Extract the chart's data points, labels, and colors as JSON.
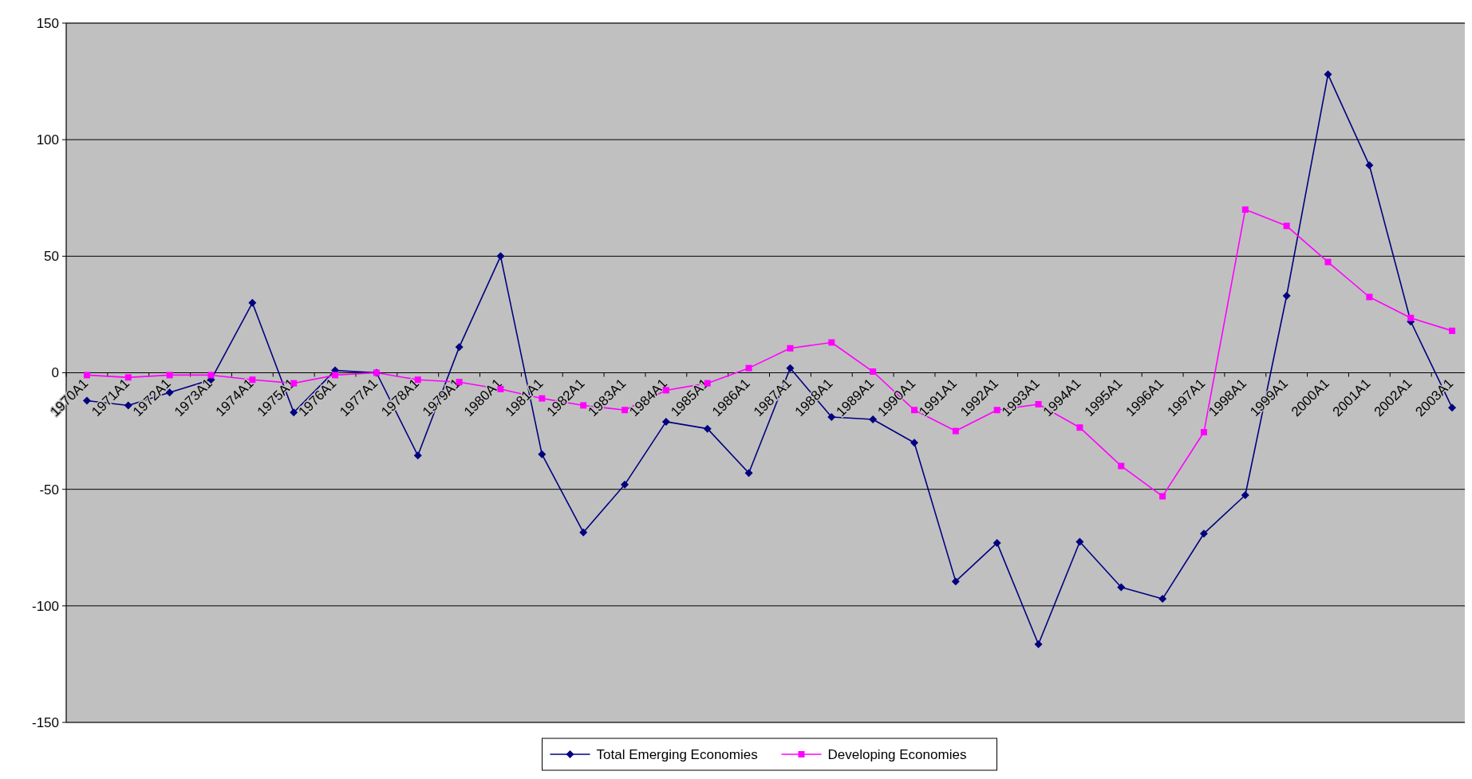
{
  "chart_data": {
    "type": "line",
    "categories": [
      "1970A1",
      "1971A1",
      "1972A1",
      "1973A1",
      "1974A1",
      "1975A1",
      "1976A1",
      "1977A1",
      "1978A1",
      "1979A1",
      "1980A1",
      "1981A1",
      "1982A1",
      "1983A1",
      "1984A1",
      "1985A1",
      "1986A1",
      "1987A1",
      "1988A1",
      "1989A1",
      "1990A1",
      "1991A1",
      "1992A1",
      "1993A1",
      "1994A1",
      "1995A1",
      "1996A1",
      "1997A1",
      "1998A1",
      "1999A1",
      "2000A1",
      "2001A1",
      "2002A1",
      "2003A1"
    ],
    "series": [
      {
        "name": "Total Emerging Economies",
        "color": "#000080",
        "marker": "diamond",
        "values": [
          -12,
          -14,
          -8.5,
          -3,
          30,
          -17,
          1,
          0,
          -35.5,
          11,
          50,
          -35,
          -68.5,
          -48,
          -21,
          -24,
          -43,
          2,
          -19,
          -20,
          -30,
          -89.5,
          -73,
          -116.5,
          -72.5,
          -92,
          -97,
          -69,
          -52.5,
          33,
          128,
          89,
          22,
          -15
        ]
      },
      {
        "name": "Developing Economies",
        "color": "#ff00ff",
        "marker": "square",
        "values": [
          -1,
          -2,
          -1,
          -1,
          -3,
          -4.5,
          -1,
          0,
          -3,
          -4,
          -7,
          -11,
          -14,
          -16,
          -7.5,
          -4.5,
          2,
          10.5,
          13,
          0.5,
          -16,
          -25,
          -16,
          -13.5,
          -23.5,
          -40,
          -53,
          -25.5,
          70,
          63,
          47.5,
          32.5,
          23.5,
          18
        ]
      }
    ],
    "ylim": [
      -150,
      150
    ],
    "yticks": [
      -150,
      -100,
      -50,
      0,
      50,
      100,
      150
    ],
    "grid": "y",
    "legend": "bottom",
    "line_style": "solid"
  }
}
